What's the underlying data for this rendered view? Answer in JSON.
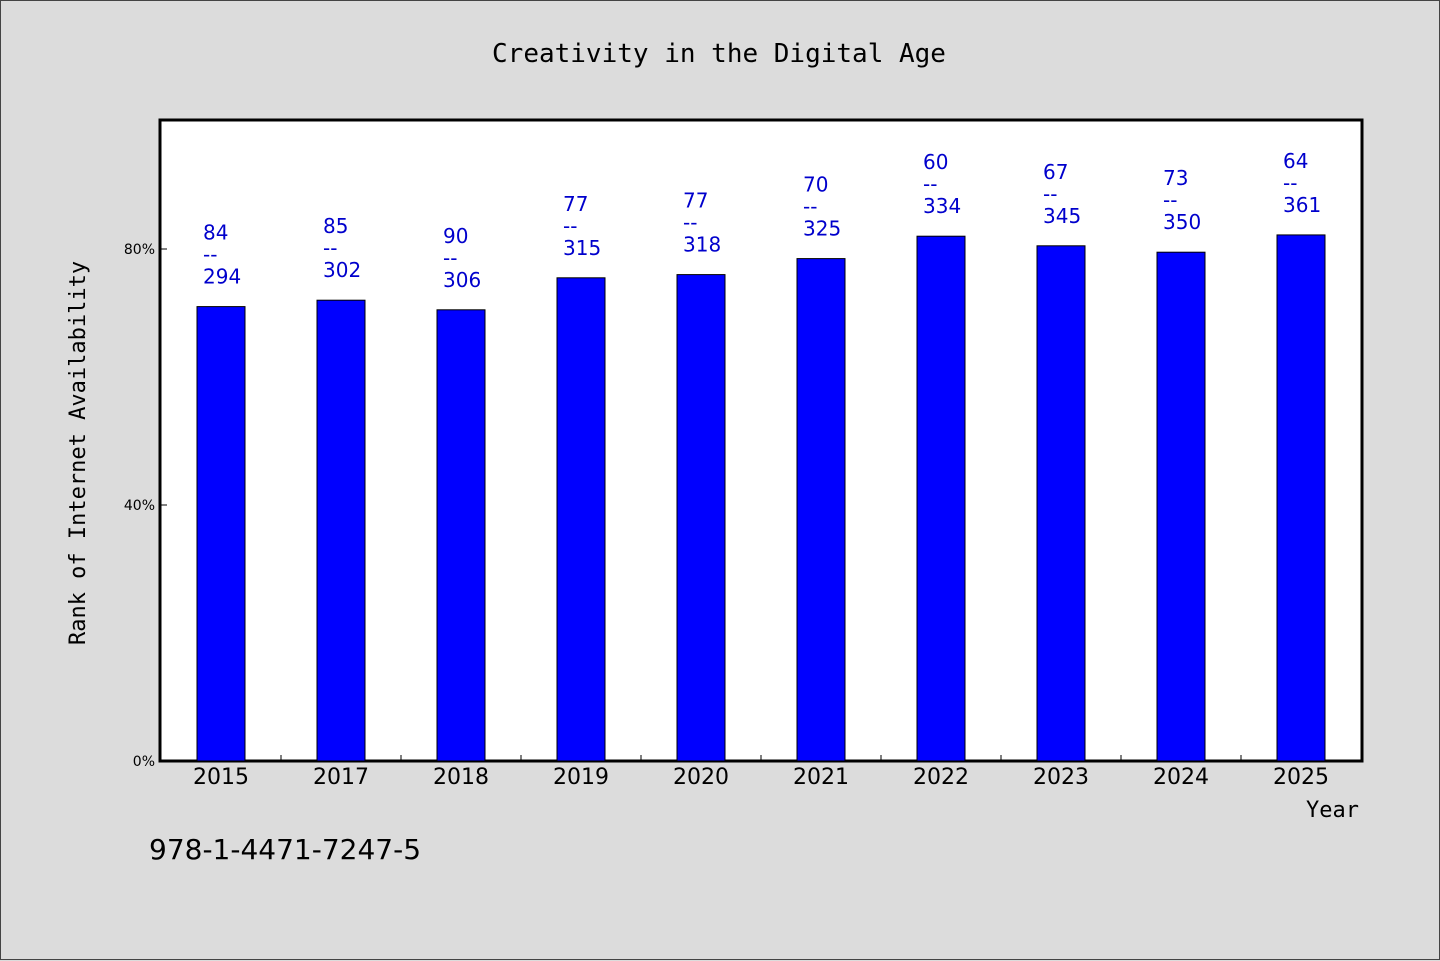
{
  "chart_data": {
    "type": "bar",
    "title": "Creativity in the Digital Age",
    "xlabel": "Year",
    "ylabel": "Rank of Internet Availability",
    "categories": [
      "2015",
      "2017",
      "2018",
      "2019",
      "2020",
      "2021",
      "2022",
      "2023",
      "2024",
      "2025"
    ],
    "values": [
      71,
      72,
      70.5,
      75.5,
      76,
      78.5,
      82,
      80.5,
      79.5,
      82.2
    ],
    "ylim": [
      0,
      100
    ],
    "yticks": [
      {
        "value": 0,
        "label": "0%"
      },
      {
        "value": 40,
        "label": "40%"
      },
      {
        "value": 80,
        "label": "80%"
      }
    ],
    "data_labels": [
      {
        "top": "84",
        "sep": "--",
        "bottom": "294"
      },
      {
        "top": "85",
        "sep": "--",
        "bottom": "302"
      },
      {
        "top": "90",
        "sep": "--",
        "bottom": "306"
      },
      {
        "top": "77",
        "sep": "--",
        "bottom": "315"
      },
      {
        "top": "77",
        "sep": "--",
        "bottom": "318"
      },
      {
        "top": "70",
        "sep": "--",
        "bottom": "325"
      },
      {
        "top": "60",
        "sep": "--",
        "bottom": "334"
      },
      {
        "top": "67",
        "sep": "--",
        "bottom": "345"
      },
      {
        "top": "73",
        "sep": "--",
        "bottom": "350"
      },
      {
        "top": "64",
        "sep": "--",
        "bottom": "361"
      }
    ],
    "grid": false,
    "legend": "none",
    "colors": {
      "bar": "#0000ff",
      "label": "#0000cc",
      "axis": "#000000",
      "plot_bg": "#ffffff"
    }
  },
  "footer": {
    "id_text": "978-1-4471-7247-5"
  }
}
